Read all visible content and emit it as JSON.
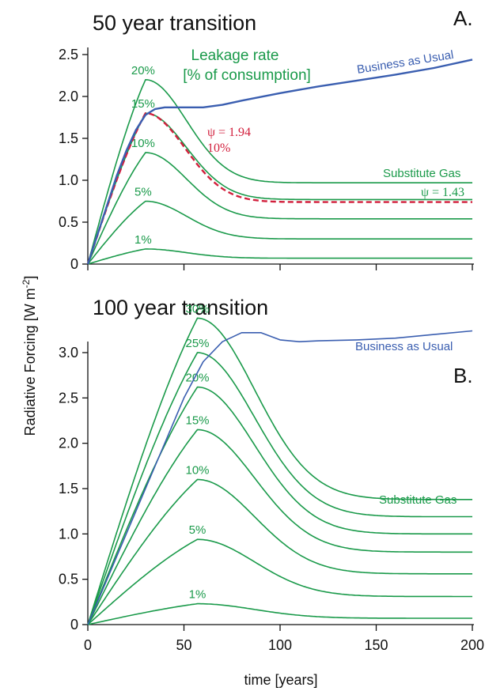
{
  "colors": {
    "substitute": "#1a9a4a",
    "business": "#3a5eb0",
    "psi": "#d21f3c",
    "axis": "#111111"
  },
  "figure": {
    "ylabel_main": "Radiative Forcing [W m",
    "ylabel_sup": "-2",
    "ylabel_close": "]",
    "xlabel": "time [years]",
    "x_ticks": [
      "0",
      "50",
      "100",
      "150",
      "200"
    ]
  },
  "chart_data": [
    {
      "type": "line",
      "panel_label": "A.",
      "title": "50 year transition",
      "xlim": [
        0,
        200
      ],
      "ylim": [
        0,
        2.5
      ],
      "y_ticks": [
        "0",
        "0.5",
        "1.0",
        "1.5",
        "2.0",
        "2.5"
      ],
      "y_tick_values": [
        0,
        0.5,
        1.0,
        1.5,
        2.0,
        2.5
      ],
      "annotations": {
        "leakage_title_1": "Leakage rate",
        "leakage_title_2": "[% of consumption]",
        "business": "Business as Usual",
        "substitute": "Substitute Gas",
        "psi_red_1": "ψ = 1.94",
        "psi_red_2": "10%",
        "psi_green": "ψ = 1.43"
      },
      "business": {
        "name": "Business as Usual",
        "points": [
          [
            0,
            0
          ],
          [
            5,
            0.35
          ],
          [
            10,
            0.7
          ],
          [
            15,
            1.05
          ],
          [
            20,
            1.35
          ],
          [
            25,
            1.6
          ],
          [
            30,
            1.78
          ],
          [
            35,
            1.85
          ],
          [
            40,
            1.87
          ],
          [
            50,
            1.87
          ],
          [
            60,
            1.87
          ],
          [
            70,
            1.9
          ],
          [
            80,
            1.95
          ],
          [
            100,
            2.04
          ],
          [
            120,
            2.12
          ],
          [
            140,
            2.19
          ],
          [
            160,
            2.26
          ],
          [
            180,
            2.34
          ],
          [
            200,
            2.44
          ]
        ]
      },
      "substitute_series": [
        {
          "name": "20%",
          "peak_x": 30,
          "peak_y": 2.2,
          "plateau": 0.97
        },
        {
          "name": "15%",
          "peak_x": 30,
          "peak_y": 1.8,
          "plateau": 0.77
        },
        {
          "name": "10%",
          "peak_x": 30,
          "peak_y": 1.33,
          "plateau": 0.54
        },
        {
          "name": "5%",
          "peak_x": 30,
          "peak_y": 0.75,
          "plateau": 0.3
        },
        {
          "name": "1%",
          "peak_x": 30,
          "peak_y": 0.18,
          "plateau": 0.07
        }
      ],
      "psi_series": {
        "name": "ψ = 1.94",
        "peak_x": 30,
        "peak_y": 1.8,
        "plateau": 0.74
      }
    },
    {
      "type": "line",
      "panel_label": "B.",
      "title": "100 year transition",
      "xlim": [
        0,
        200
      ],
      "ylim": [
        0,
        3.0
      ],
      "y_ticks": [
        "0",
        "0.5",
        "1.0",
        "1.5",
        "2.0",
        "2.5",
        "3.0"
      ],
      "y_tick_values": [
        0,
        0.5,
        1.0,
        1.5,
        2.0,
        2.5,
        3.0
      ],
      "annotations": {
        "business": "Business as Usual",
        "substitute": "Substitute Gas"
      },
      "business": {
        "name": "Business as Usual",
        "points": [
          [
            0,
            0
          ],
          [
            10,
            0.5
          ],
          [
            20,
            1.0
          ],
          [
            30,
            1.5
          ],
          [
            40,
            2.0
          ],
          [
            50,
            2.5
          ],
          [
            60,
            2.9
          ],
          [
            70,
            3.12
          ],
          [
            80,
            3.22
          ],
          [
            90,
            3.22
          ],
          [
            100,
            3.14
          ],
          [
            110,
            3.12
          ],
          [
            120,
            3.13
          ],
          [
            140,
            3.14
          ],
          [
            160,
            3.16
          ],
          [
            180,
            3.2
          ],
          [
            200,
            3.24
          ]
        ]
      },
      "substitute_series": [
        {
          "name": "30%",
          "peak_x": 57,
          "peak_y": 3.38,
          "plateau": 1.38
        },
        {
          "name": "25%",
          "peak_x": 57,
          "peak_y": 3.0,
          "plateau": 1.19
        },
        {
          "name": "20%",
          "peak_x": 57,
          "peak_y": 2.62,
          "plateau": 1.0
        },
        {
          "name": "15%",
          "peak_x": 57,
          "peak_y": 2.15,
          "plateau": 0.8
        },
        {
          "name": "10%",
          "peak_x": 57,
          "peak_y": 1.6,
          "plateau": 0.56
        },
        {
          "name": "5%",
          "peak_x": 57,
          "peak_y": 0.94,
          "plateau": 0.31
        },
        {
          "name": "1%",
          "peak_x": 57,
          "peak_y": 0.23,
          "plateau": 0.07
        }
      ]
    }
  ]
}
